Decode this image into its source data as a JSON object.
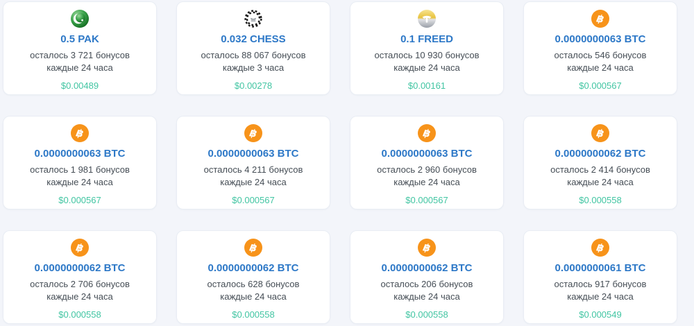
{
  "page": {
    "background_color": "#f3f5fa",
    "card_background": "#ffffff",
    "card_border_color": "#e9edf4"
  },
  "colors": {
    "amount_blue": "#2d78c7",
    "text_gray": "#454d55",
    "usd_teal": "#41c5a2",
    "btc_orange": "#f7931a",
    "pak_green": "#2f9e3f",
    "freed_gold": "#e8c23c",
    "chess_black": "#1a1a1a"
  },
  "cards": [
    {
      "icon": "pak-coin-icon",
      "title": "0.5 PAK",
      "remaining": "осталось 3 721 бонусов",
      "interval": "каждые 24 часа",
      "usd": "$0.00489"
    },
    {
      "icon": "chess-coin-icon",
      "title": "0.032 CHESS",
      "remaining": "осталось 88 067 бонусов",
      "interval": "каждые 3 часа",
      "usd": "$0.00278"
    },
    {
      "icon": "freed-coin-icon",
      "title": "0.1 FREED",
      "remaining": "осталось 10 930 бонусов",
      "interval": "каждые 24 часа",
      "usd": "$0.00161"
    },
    {
      "icon": "btc-coin-icon",
      "title": "0.0000000063 BTC",
      "remaining": "осталось 546 бонусов",
      "interval": "каждые 24 часа",
      "usd": "$0.000567"
    },
    {
      "icon": "btc-coin-icon",
      "title": "0.0000000063 BTC",
      "remaining": "осталось 1 981 бонусов",
      "interval": "каждые 24 часа",
      "usd": "$0.000567"
    },
    {
      "icon": "btc-coin-icon",
      "title": "0.0000000063 BTC",
      "remaining": "осталось 4 211 бонусов",
      "interval": "каждые 24 часа",
      "usd": "$0.000567"
    },
    {
      "icon": "btc-coin-icon",
      "title": "0.0000000063 BTC",
      "remaining": "осталось 2 960 бонусов",
      "interval": "каждые 24 часа",
      "usd": "$0.000567"
    },
    {
      "icon": "btc-coin-icon",
      "title": "0.0000000062 BTC",
      "remaining": "осталось 2 414 бонусов",
      "interval": "каждые 24 часа",
      "usd": "$0.000558"
    },
    {
      "icon": "btc-coin-icon",
      "title": "0.0000000062 BTC",
      "remaining": "осталось 2 706 бонусов",
      "interval": "каждые 24 часа",
      "usd": "$0.000558"
    },
    {
      "icon": "btc-coin-icon",
      "title": "0.0000000062 BTC",
      "remaining": "осталось 628 бонусов",
      "interval": "каждые 24 часа",
      "usd": "$0.000558"
    },
    {
      "icon": "btc-coin-icon",
      "title": "0.0000000062 BTC",
      "remaining": "осталось 206 бонусов",
      "interval": "каждые 24 часа",
      "usd": "$0.000558"
    },
    {
      "icon": "btc-coin-icon",
      "title": "0.0000000061 BTC",
      "remaining": "осталось 917 бонусов",
      "interval": "каждые 24 часа",
      "usd": "$0.000549"
    }
  ]
}
